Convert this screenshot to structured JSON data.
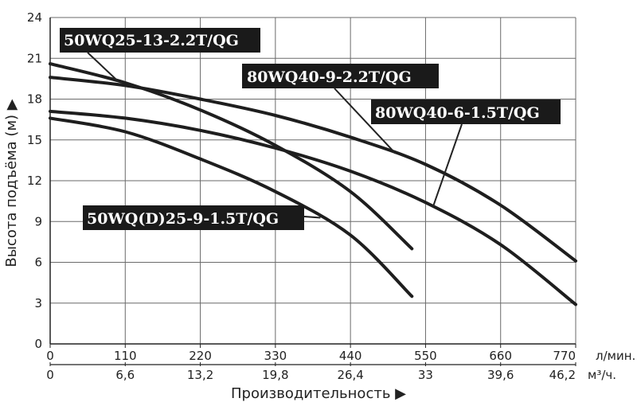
{
  "chart_data": {
    "type": "line",
    "ylabel": "Высота подъёма (м) ▶",
    "xlabel": "Производительность ▶",
    "x_unit_primary": "л/мин.",
    "x_unit_secondary": "м³/ч.",
    "ylim": [
      0,
      24
    ],
    "xlim": [
      0,
      770
    ],
    "y_ticks": [
      "0",
      "3",
      "6",
      "9",
      "12",
      "15",
      "18",
      "21",
      "24"
    ],
    "x_ticks_primary": [
      "0",
      "110",
      "220",
      "330",
      "440",
      "550",
      "660",
      "770"
    ],
    "x_ticks_secondary": [
      "0",
      "6,6",
      "13,2",
      "19,8",
      "26,4",
      "33",
      "39,6",
      "46,2"
    ],
    "grid": true,
    "series": [
      {
        "name": "50WQ25-13-2.2T/QG",
        "x": [
          0,
          110,
          220,
          330,
          440,
          530
        ],
        "y": [
          20.6,
          19.2,
          17.2,
          14.6,
          11.2,
          7.0
        ]
      },
      {
        "name": "80WQ40-9-2.2T/QG",
        "x": [
          0,
          110,
          220,
          330,
          440,
          550,
          660,
          770
        ],
        "y": [
          19.6,
          19.0,
          18.0,
          16.8,
          15.2,
          13.2,
          10.2,
          6.1
        ]
      },
      {
        "name": "80WQ40-6-1.5T/QG",
        "x": [
          0,
          110,
          220,
          330,
          440,
          550,
          660,
          770
        ],
        "y": [
          17.1,
          16.6,
          15.7,
          14.4,
          12.7,
          10.4,
          7.3,
          2.9
        ]
      },
      {
        "name": "50WQ(D)25-9-1.5T/QG",
        "x": [
          0,
          110,
          220,
          330,
          440,
          530
        ],
        "y": [
          16.6,
          15.6,
          13.6,
          11.2,
          8.0,
          3.5
        ]
      }
    ]
  }
}
